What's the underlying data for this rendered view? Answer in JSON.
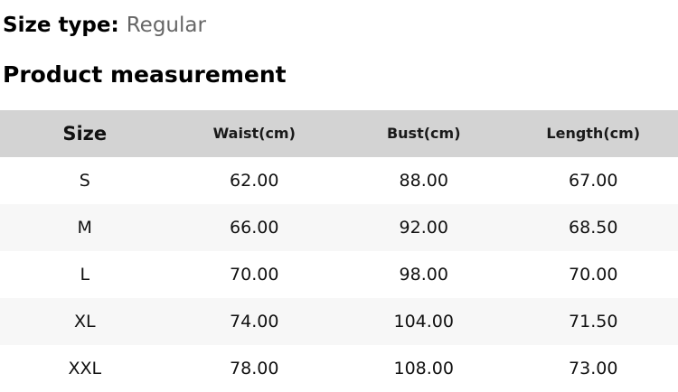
{
  "header": {
    "size_type_label": "Size type:",
    "size_type_value": "Regular",
    "section_title": "Product measurement"
  },
  "table": {
    "columns": [
      "Size",
      "Waist(cm)",
      "Bust(cm)",
      "Length(cm)"
    ],
    "rows": [
      {
        "size": "S",
        "waist": "62.00",
        "bust": "88.00",
        "length": "67.00"
      },
      {
        "size": "M",
        "waist": "66.00",
        "bust": "92.00",
        "length": "68.50"
      },
      {
        "size": "L",
        "waist": "70.00",
        "bust": "98.00",
        "length": "70.00"
      },
      {
        "size": "XL",
        "waist": "74.00",
        "bust": "104.00",
        "length": "71.50"
      },
      {
        "size": "XXL",
        "waist": "78.00",
        "bust": "108.00",
        "length": "73.00"
      }
    ]
  },
  "colors": {
    "header_bg": "#d3d3d3",
    "row_alt_bg": "#f7f7f7",
    "muted_text": "#666666"
  }
}
